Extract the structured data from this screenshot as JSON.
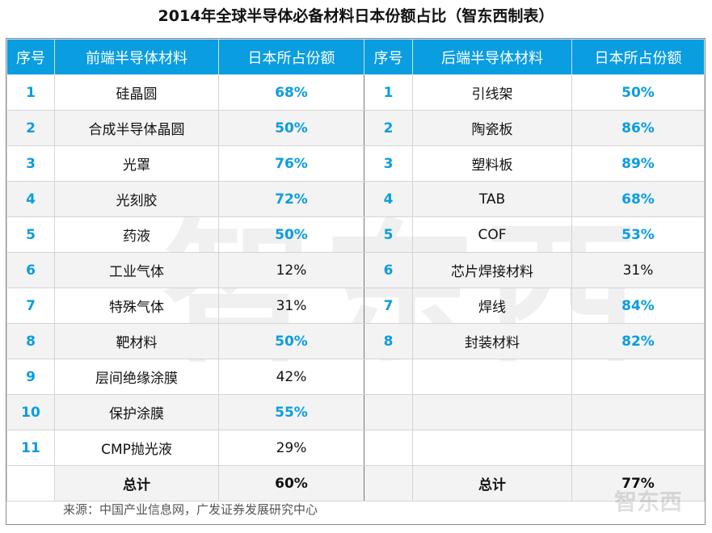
{
  "title": "2014年全球半导体必备材料日本份额占比（智东西制表）",
  "headers": [
    "序号",
    "前端半导体材料",
    "日本所占份额",
    "序号",
    "后端半导体材料",
    "日本所占份额"
  ],
  "front": [
    {
      "no": "1",
      "name": "硅晶圆",
      "share": "68%",
      "highlight": true
    },
    {
      "no": "2",
      "name": "合成半导体晶圆",
      "share": "50%",
      "highlight": true
    },
    {
      "no": "3",
      "name": "光罩",
      "share": "76%",
      "highlight": true
    },
    {
      "no": "4",
      "name": "光刻胶",
      "share": "72%",
      "highlight": true
    },
    {
      "no": "5",
      "name": "药液",
      "share": "50%",
      "highlight": true
    },
    {
      "no": "6",
      "name": "工业气体",
      "share": "12%",
      "highlight": false
    },
    {
      "no": "7",
      "name": "特殊气体",
      "share": "31%",
      "highlight": false
    },
    {
      "no": "8",
      "name": "靶材料",
      "share": "50%",
      "highlight": true
    },
    {
      "no": "9",
      "name": "层间绝缘涂膜",
      "share": "42%",
      "highlight": false
    },
    {
      "no": "10",
      "name": "保护涂膜",
      "share": "55%",
      "highlight": true
    },
    {
      "no": "11",
      "name": "CMP抛光液",
      "share": "29%",
      "highlight": false
    }
  ],
  "back": [
    {
      "no": "1",
      "name": "引线架",
      "share": "50%",
      "highlight": true
    },
    {
      "no": "2",
      "name": "陶瓷板",
      "share": "86%",
      "highlight": true
    },
    {
      "no": "3",
      "name": "塑料板",
      "share": "89%",
      "highlight": true
    },
    {
      "no": "4",
      "name": "TAB",
      "share": "68%",
      "highlight": true
    },
    {
      "no": "5",
      "name": "COF",
      "share": "53%",
      "highlight": true
    },
    {
      "no": "6",
      "name": "芯片焊接材料",
      "share": "31%",
      "highlight": false
    },
    {
      "no": "7",
      "name": "焊线",
      "share": "84%",
      "highlight": true
    },
    {
      "no": "8",
      "name": "封装材料",
      "share": "82%",
      "highlight": true
    }
  ],
  "total": {
    "label": "总计",
    "front_share": "60%",
    "back_share": "77%"
  },
  "source": "来源：中国产业信息网，广发证券发展研究中心",
  "watermark": "智东西",
  "colors": {
    "header": "#0a9de0",
    "highlight": "#0a9de0",
    "alt_row": "#f3f3f3"
  }
}
